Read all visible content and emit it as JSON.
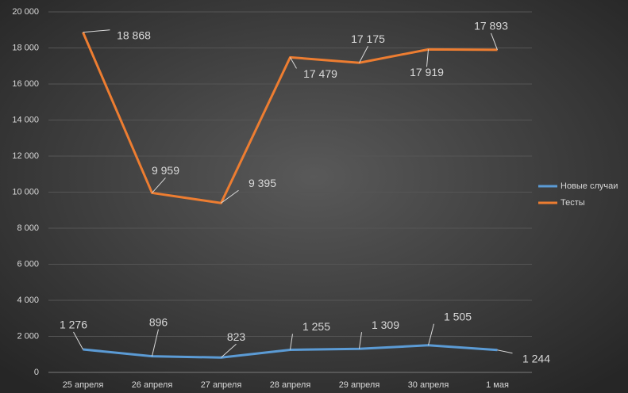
{
  "chart_data": {
    "type": "line",
    "categories": [
      "25 апреля",
      "26 апреля",
      "27 апреля",
      "28 апреля",
      "29 апреля",
      "30 апреля",
      "1 мая"
    ],
    "series": [
      {
        "name": "Новые случаи",
        "color": "#5b9bd5",
        "values": [
          1276,
          896,
          823,
          1255,
          1309,
          1505,
          1244
        ],
        "value_labels": [
          "1 276",
          "896",
          "823",
          "1 255",
          "1 309",
          "1 505",
          "1 244"
        ]
      },
      {
        "name": "Тесты",
        "color": "#ed7d31",
        "values": [
          18868,
          9959,
          9395,
          17479,
          17175,
          17919,
          17893
        ],
        "value_labels": [
          "18 868",
          "9 959",
          "9 395",
          "17 479",
          "17 175",
          "17 919",
          "17 893"
        ]
      }
    ],
    "ylim": [
      0,
      20000
    ],
    "yticks": [
      0,
      {
        "value": 2000,
        "label": "2 000"
      },
      {
        "value": 4000,
        "label": "4 000"
      },
      {
        "value": 6000,
        "label": "6 000"
      },
      {
        "value": 8000,
        "label": "8 000"
      },
      {
        "value": 10000,
        "label": "10 000"
      },
      {
        "value": 12000,
        "label": "12 000"
      },
      {
        "value": 14000,
        "label": "14 000"
      },
      {
        "value": 16000,
        "label": "16 000"
      },
      {
        "value": 18000,
        "label": "18 000"
      },
      {
        "value": 20000,
        "label": "20 000"
      }
    ],
    "grid": true,
    "legend": "right"
  }
}
